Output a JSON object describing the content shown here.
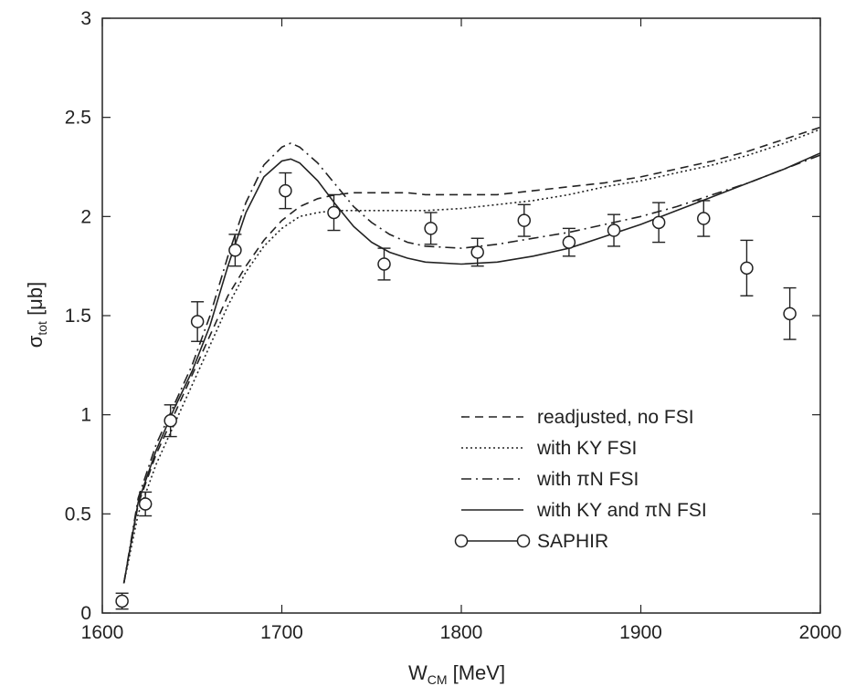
{
  "chart_data": {
    "type": "line",
    "xlabel": {
      "main": "W",
      "sub": "CM",
      "rest": " [MeV]"
    },
    "ylabel": {
      "main": "σ",
      "sub": "tot",
      "rest": " [μb]"
    },
    "xlim": [
      1600,
      2000
    ],
    "ylim": [
      0,
      3
    ],
    "x_ticks": [
      1600,
      1700,
      1800,
      1900,
      2000
    ],
    "x_tick_labels": [
      "1600",
      "1700",
      "1800",
      "1900",
      "2000"
    ],
    "y_ticks": [
      0,
      0.5,
      1,
      1.5,
      2,
      2.5,
      3
    ],
    "y_tick_labels": [
      "0",
      "0.5",
      "1",
      "1.5",
      "2",
      "2.5",
      "3"
    ],
    "grid": false,
    "legend_position": "bottom-right",
    "series": [
      {
        "name": "readjusted, no FSI",
        "style": "dashed",
        "x": [
          1612,
          1620,
          1630,
          1640,
          1650,
          1660,
          1670,
          1680,
          1690,
          1700,
          1710,
          1720,
          1730,
          1740,
          1750,
          1760,
          1770,
          1780,
          1800,
          1820,
          1840,
          1860,
          1880,
          1900,
          1920,
          1940,
          1960,
          1980,
          2000
        ],
        "y": [
          0.15,
          0.55,
          0.8,
          1.0,
          1.2,
          1.4,
          1.6,
          1.75,
          1.88,
          1.98,
          2.05,
          2.09,
          2.11,
          2.12,
          2.12,
          2.12,
          2.12,
          2.11,
          2.11,
          2.11,
          2.13,
          2.15,
          2.17,
          2.2,
          2.24,
          2.28,
          2.33,
          2.39,
          2.45
        ]
      },
      {
        "name": "with KY FSI",
        "style": "dotted",
        "x": [
          1612,
          1620,
          1630,
          1640,
          1650,
          1660,
          1670,
          1680,
          1690,
          1700,
          1710,
          1720,
          1730,
          1740,
          1750,
          1760,
          1780,
          1800,
          1820,
          1840,
          1860,
          1880,
          1900,
          1920,
          1940,
          1960,
          1980,
          2000
        ],
        "y": [
          0.15,
          0.5,
          0.75,
          0.95,
          1.15,
          1.35,
          1.55,
          1.72,
          1.85,
          1.94,
          2.0,
          2.02,
          2.03,
          2.03,
          2.03,
          2.03,
          2.03,
          2.04,
          2.06,
          2.08,
          2.11,
          2.15,
          2.18,
          2.22,
          2.26,
          2.31,
          2.37,
          2.44
        ]
      },
      {
        "name": "with πN FSI",
        "style": "dashdot",
        "x": [
          1612,
          1620,
          1630,
          1640,
          1650,
          1660,
          1670,
          1680,
          1690,
          1700,
          1705,
          1710,
          1720,
          1730,
          1740,
          1750,
          1760,
          1770,
          1780,
          1800,
          1820,
          1840,
          1860,
          1880,
          1900,
          1920,
          1940,
          1960,
          1980,
          2000
        ],
        "y": [
          0.15,
          0.58,
          0.85,
          1.05,
          1.25,
          1.5,
          1.8,
          2.07,
          2.26,
          2.35,
          2.37,
          2.35,
          2.27,
          2.16,
          2.05,
          1.97,
          1.91,
          1.87,
          1.85,
          1.84,
          1.86,
          1.89,
          1.92,
          1.96,
          2.0,
          2.05,
          2.11,
          2.17,
          2.24,
          2.31
        ]
      },
      {
        "name": "with KY and πN FSI",
        "style": "solid",
        "x": [
          1612,
          1620,
          1630,
          1640,
          1650,
          1660,
          1670,
          1680,
          1690,
          1700,
          1705,
          1710,
          1720,
          1730,
          1740,
          1750,
          1760,
          1770,
          1780,
          1800,
          1820,
          1840,
          1860,
          1880,
          1900,
          1920,
          1940,
          1960,
          1980,
          2000
        ],
        "y": [
          0.15,
          0.56,
          0.82,
          1.03,
          1.22,
          1.45,
          1.75,
          2.02,
          2.2,
          2.28,
          2.29,
          2.27,
          2.18,
          2.06,
          1.95,
          1.87,
          1.82,
          1.79,
          1.77,
          1.76,
          1.77,
          1.8,
          1.84,
          1.9,
          1.96,
          2.03,
          2.1,
          2.17,
          2.24,
          2.32
        ]
      }
    ],
    "data_points": {
      "name": "SAPHIR",
      "x": [
        1611,
        1624,
        1638,
        1653,
        1674,
        1702,
        1729,
        1757,
        1783,
        1809,
        1835,
        1860,
        1885,
        1910,
        1935,
        1959,
        1983
      ],
      "y": [
        0.06,
        0.55,
        0.97,
        1.47,
        1.83,
        2.13,
        2.02,
        1.76,
        1.94,
        1.82,
        1.98,
        1.87,
        1.93,
        1.97,
        1.99,
        1.74,
        1.51
      ],
      "err": [
        0.04,
        0.06,
        0.08,
        0.1,
        0.08,
        0.09,
        0.09,
        0.08,
        0.08,
        0.07,
        0.08,
        0.07,
        0.08,
        0.1,
        0.09,
        0.14,
        0.13
      ]
    },
    "legend": [
      {
        "label": "readjusted, no FSI",
        "style": "dashed"
      },
      {
        "label": "with KY FSI",
        "style": "dotted"
      },
      {
        "label": "with πN FSI",
        "style": "dashdot"
      },
      {
        "label": "with KY and πN FSI",
        "style": "solid"
      },
      {
        "label": "SAPHIR",
        "style": "marker"
      }
    ]
  }
}
